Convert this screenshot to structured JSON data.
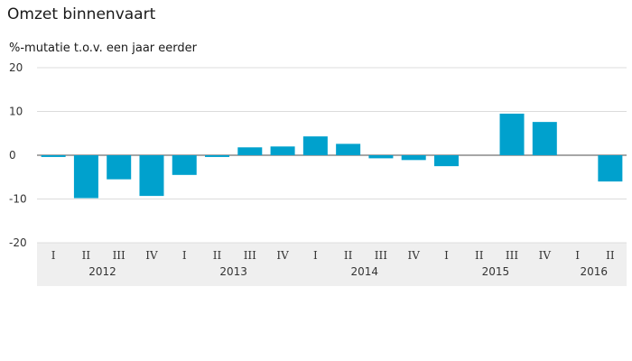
{
  "chart_data": {
    "type": "bar",
    "title": "Omzet binnenvaart",
    "subtitle": "%-mutatie t.o.v. een jaar eerder",
    "xlabel": "",
    "ylabel": "",
    "ylim": [
      -20,
      20
    ],
    "yticks": [
      20,
      10,
      0,
      -10,
      -20
    ],
    "grid": true,
    "bar_color": "#00a1cd",
    "axis_band_color": "#efefef",
    "categories": [
      {
        "quarter": "I",
        "year": "2012"
      },
      {
        "quarter": "II",
        "year": "2012"
      },
      {
        "quarter": "III",
        "year": "2012"
      },
      {
        "quarter": "IV",
        "year": "2012"
      },
      {
        "quarter": "I",
        "year": "2013"
      },
      {
        "quarter": "II",
        "year": "2013"
      },
      {
        "quarter": "III",
        "year": "2013"
      },
      {
        "quarter": "IV",
        "year": "2013"
      },
      {
        "quarter": "I",
        "year": "2014"
      },
      {
        "quarter": "II",
        "year": "2014"
      },
      {
        "quarter": "III",
        "year": "2014"
      },
      {
        "quarter": "IV",
        "year": "2014"
      },
      {
        "quarter": "I",
        "year": "2015"
      },
      {
        "quarter": "II",
        "year": "2015"
      },
      {
        "quarter": "III",
        "year": "2015"
      },
      {
        "quarter": "IV",
        "year": "2015"
      },
      {
        "quarter": "I",
        "year": "2016"
      },
      {
        "quarter": "II",
        "year": "2016"
      }
    ],
    "years": [
      "2012",
      "2013",
      "2014",
      "2015",
      "2016"
    ],
    "values": [
      -0.4,
      -9.8,
      -5.5,
      -9.3,
      -4.5,
      -0.4,
      1.8,
      2.0,
      4.3,
      2.6,
      -0.7,
      -1.1,
      -2.5,
      0,
      9.5,
      7.6,
      0,
      -6.0
    ]
  }
}
